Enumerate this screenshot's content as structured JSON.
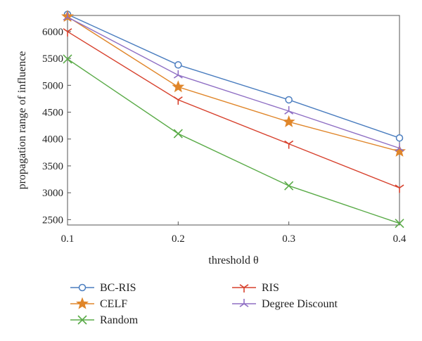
{
  "chart_data": {
    "type": "line",
    "title": "",
    "xlabel": "threshold θ",
    "ylabel": "propagation range of influence",
    "x": [
      0.1,
      0.2,
      0.3,
      0.4
    ],
    "x_ticks": [
      "0.1",
      "0.2",
      "0.3",
      "0.4"
    ],
    "xlim": [
      0.1,
      0.4
    ],
    "ylim": [
      2400,
      6300
    ],
    "y_ticks": [
      2500,
      3000,
      3500,
      4000,
      4500,
      5000,
      5500,
      6000
    ],
    "grid": false,
    "legend_position": "bottom",
    "series": [
      {
        "name": "BC-RIS",
        "values": [
          6320,
          5380,
          4730,
          4020
        ],
        "color": "#4a7dbf",
        "marker": "circle"
      },
      {
        "name": "CELF",
        "values": [
          6280,
          4970,
          4320,
          3770
        ],
        "color": "#e0862a",
        "marker": "star"
      },
      {
        "name": "Random",
        "values": [
          5490,
          4100,
          3130,
          2430
        ],
        "color": "#5aab48",
        "marker": "x"
      },
      {
        "name": "RIS",
        "values": [
          6000,
          4730,
          3910,
          3090
        ],
        "color": "#d7412d",
        "marker": "tri"
      },
      {
        "name": "Degree Discount",
        "values": [
          6270,
          5190,
          4520,
          3830
        ],
        "color": "#8f6fc4",
        "marker": "asterisk"
      }
    ]
  }
}
